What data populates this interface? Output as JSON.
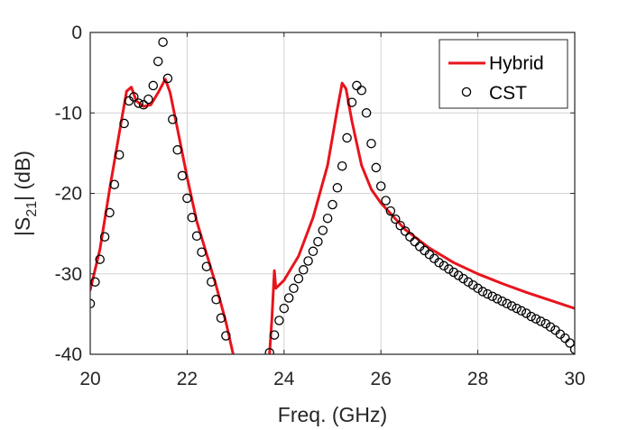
{
  "chart_data": {
    "type": "line",
    "title": "",
    "xlabel": "Freq. (GHz)",
    "ylabel_parts": {
      "pre": "|S",
      "sub": "21",
      "post": "| (dB)"
    },
    "xlim": [
      20,
      30
    ],
    "ylim": [
      -40,
      0
    ],
    "xticks": [
      20,
      22,
      24,
      26,
      28,
      30
    ],
    "yticks": [
      0,
      -10,
      -20,
      -30,
      -40
    ],
    "grid": true,
    "legend": {
      "placement": "top-right",
      "entries": [
        "Hybrid",
        "CST"
      ]
    },
    "series": [
      {
        "name": "Hybrid",
        "style": "line",
        "color": "#e8141c",
        "segments": [
          [
            [
              20.0,
              -32.0
            ],
            [
              20.2,
              -27.0
            ],
            [
              20.4,
              -19.5
            ],
            [
              20.6,
              -12.5
            ],
            [
              20.75,
              -7.3
            ],
            [
              20.85,
              -6.8
            ],
            [
              20.95,
              -8.5
            ],
            [
              21.1,
              -9.2
            ],
            [
              21.25,
              -9.0
            ],
            [
              21.4,
              -7.5
            ],
            [
              21.55,
              -5.8
            ],
            [
              21.65,
              -7.5
            ],
            [
              21.8,
              -12.0
            ],
            [
              22.0,
              -18.0
            ],
            [
              22.2,
              -23.5
            ],
            [
              22.4,
              -27.5
            ],
            [
              22.6,
              -31.5
            ],
            [
              22.8,
              -36.0
            ],
            [
              22.95,
              -40.0
            ]
          ],
          [
            [
              23.7,
              -40.0
            ],
            [
              23.75,
              -35.5
            ],
            [
              23.78,
              -32.0
            ],
            [
              23.8,
              -29.6
            ],
            [
              23.83,
              -31.8
            ],
            [
              24.0,
              -30.8
            ],
            [
              24.3,
              -27.8
            ],
            [
              24.6,
              -23.0
            ],
            [
              24.9,
              -16.5
            ],
            [
              25.1,
              -9.5
            ],
            [
              25.2,
              -6.3
            ],
            [
              25.28,
              -7.0
            ],
            [
              25.4,
              -11.0
            ],
            [
              25.6,
              -16.5
            ],
            [
              25.8,
              -19.5
            ],
            [
              26.0,
              -21.2
            ],
            [
              26.5,
              -24.5
            ],
            [
              27.0,
              -26.8
            ],
            [
              27.5,
              -28.6
            ],
            [
              28.0,
              -30.0
            ],
            [
              28.5,
              -31.2
            ],
            [
              29.0,
              -32.3
            ],
            [
              29.5,
              -33.3
            ],
            [
              30.0,
              -34.3
            ]
          ]
        ]
      },
      {
        "name": "CST",
        "style": "markers",
        "color": "#000000",
        "points": [
          [
            20.0,
            -33.7
          ],
          [
            20.1,
            -31.0
          ],
          [
            20.2,
            -28.2
          ],
          [
            20.3,
            -25.4
          ],
          [
            20.4,
            -22.4
          ],
          [
            20.5,
            -18.9
          ],
          [
            20.6,
            -15.2
          ],
          [
            20.7,
            -11.3
          ],
          [
            20.8,
            -8.5
          ],
          [
            20.9,
            -8.0
          ],
          [
            21.0,
            -8.8
          ],
          [
            21.1,
            -9.0
          ],
          [
            21.2,
            -8.3
          ],
          [
            21.3,
            -6.6
          ],
          [
            21.4,
            -3.6
          ],
          [
            21.5,
            -1.2
          ],
          [
            21.6,
            -5.7
          ],
          [
            21.7,
            -10.8
          ],
          [
            21.8,
            -14.6
          ],
          [
            21.9,
            -17.8
          ],
          [
            22.0,
            -20.6
          ],
          [
            22.1,
            -23.0
          ],
          [
            22.2,
            -25.3
          ],
          [
            22.3,
            -27.3
          ],
          [
            22.4,
            -29.1
          ],
          [
            22.5,
            -31.0
          ],
          [
            22.6,
            -33.2
          ],
          [
            22.7,
            -35.5
          ],
          [
            22.8,
            -37.7
          ],
          [
            23.7,
            -39.8
          ],
          [
            23.8,
            -37.6
          ],
          [
            23.9,
            -35.8
          ],
          [
            24.0,
            -34.3
          ],
          [
            24.1,
            -33.0
          ],
          [
            24.2,
            -31.8
          ],
          [
            24.3,
            -30.6
          ],
          [
            24.4,
            -29.5
          ],
          [
            24.5,
            -28.4
          ],
          [
            24.6,
            -27.2
          ],
          [
            24.7,
            -26.0
          ],
          [
            24.8,
            -24.6
          ],
          [
            24.9,
            -23.1
          ],
          [
            25.0,
            -21.4
          ],
          [
            25.1,
            -19.3
          ],
          [
            25.2,
            -16.6
          ],
          [
            25.3,
            -13.1
          ],
          [
            25.4,
            -8.7
          ],
          [
            25.5,
            -6.6
          ],
          [
            25.6,
            -7.2
          ],
          [
            25.7,
            -10.0
          ],
          [
            25.8,
            -13.8
          ],
          [
            25.9,
            -16.8
          ],
          [
            26.0,
            -19.1
          ],
          [
            26.1,
            -20.9
          ],
          [
            26.2,
            -22.2
          ],
          [
            26.3,
            -23.2
          ],
          [
            26.4,
            -24.0
          ],
          [
            26.5,
            -24.7
          ],
          [
            26.6,
            -25.4
          ],
          [
            26.7,
            -26.0
          ],
          [
            26.8,
            -26.6
          ],
          [
            26.9,
            -27.1
          ],
          [
            27.0,
            -27.6
          ],
          [
            27.1,
            -28.1
          ],
          [
            27.2,
            -28.6
          ],
          [
            27.3,
            -29.0
          ],
          [
            27.4,
            -29.4
          ],
          [
            27.5,
            -29.8
          ],
          [
            27.6,
            -30.2
          ],
          [
            27.7,
            -30.6
          ],
          [
            27.8,
            -31.0
          ],
          [
            27.9,
            -31.4
          ],
          [
            28.0,
            -31.8
          ],
          [
            28.1,
            -32.2
          ],
          [
            28.2,
            -32.5
          ],
          [
            28.3,
            -32.8
          ],
          [
            28.4,
            -33.1
          ],
          [
            28.5,
            -33.4
          ],
          [
            28.6,
            -33.7
          ],
          [
            28.7,
            -34.0
          ],
          [
            28.8,
            -34.3
          ],
          [
            28.9,
            -34.6
          ],
          [
            29.0,
            -34.9
          ],
          [
            29.1,
            -35.3
          ],
          [
            29.2,
            -35.6
          ],
          [
            29.3,
            -35.9
          ],
          [
            29.4,
            -36.2
          ],
          [
            29.5,
            -36.6
          ],
          [
            29.6,
            -37.0
          ],
          [
            29.7,
            -37.5
          ],
          [
            29.8,
            -38.0
          ],
          [
            29.9,
            -38.6
          ],
          [
            30.0,
            -39.4
          ]
        ]
      }
    ]
  }
}
